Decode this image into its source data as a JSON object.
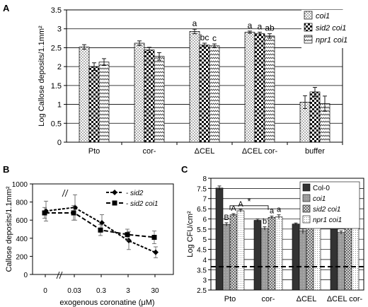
{
  "chart_data": [
    {
      "panel": "A",
      "type": "bar",
      "ylabel": "Log Callose deposits/1.1mm²",
      "ylim": [
        0,
        3.5
      ],
      "yticks": [
        "0",
        "0.5",
        "1",
        "1.5",
        "2",
        "2.5",
        "3",
        "3.5"
      ],
      "categories": [
        "Pto",
        "cor-",
        "ΔCEL",
        "ΔCEL cor-",
        "buffer"
      ],
      "legend_position": "top-right",
      "series": [
        {
          "name": "coi1",
          "values": [
            2.52,
            2.62,
            2.93,
            2.91,
            1.06
          ],
          "errors": [
            0.06,
            0.06,
            0.06,
            0.03,
            0.17
          ]
        },
        {
          "name": "sid2 coi1",
          "values": [
            2.0,
            2.44,
            2.57,
            2.87,
            1.33
          ],
          "errors": [
            0.1,
            0.07,
            0.05,
            0.04,
            0.12
          ]
        },
        {
          "name": "npr1 coi1",
          "values": [
            2.12,
            2.27,
            2.55,
            2.81,
            1.02
          ],
          "errors": [
            0.09,
            0.1,
            0.05,
            0.06,
            0.2
          ]
        }
      ],
      "annotations": [
        {
          "category": "ΔCEL",
          "series": "coi1",
          "text": "a"
        },
        {
          "category": "ΔCEL",
          "series": "sid2 coi1",
          "text": "bc"
        },
        {
          "category": "ΔCEL",
          "series": "npr1 coi1",
          "text": "c"
        },
        {
          "category": "ΔCEL cor-",
          "series": "coi1",
          "text": "a"
        },
        {
          "category": "ΔCEL cor-",
          "series": "sid2 coi1",
          "text": "a"
        },
        {
          "category": "ΔCEL cor-",
          "series": "npr1 coi1",
          "text": "ab"
        }
      ]
    },
    {
      "panel": "B",
      "type": "line",
      "ylabel": "Callose deposits/1.1mm²",
      "xlabel": "exogenous coronatine (μM)",
      "ylim": [
        0,
        1000
      ],
      "yticks": [
        "0",
        "200",
        "400",
        "600",
        "800",
        "1000"
      ],
      "xticks": [
        "0",
        "0.03",
        "0.3",
        "3",
        "30"
      ],
      "legend_position": "top-right",
      "series": [
        {
          "name": "sid2",
          "marker": "diamond",
          "x": [
            0,
            0.03,
            0.3,
            3,
            30
          ],
          "y": [
            700,
            740,
            570,
            375,
            245
          ],
          "errors": [
            110,
            140,
            90,
            100,
            60
          ]
        },
        {
          "name": "sid2 coi1",
          "marker": "square",
          "x": [
            0,
            0.03,
            0.3,
            3,
            30
          ],
          "y": [
            680,
            680,
            490,
            440,
            410
          ],
          "errors": [
            60,
            80,
            60,
            60,
            70
          ]
        }
      ]
    },
    {
      "panel": "C",
      "type": "bar",
      "ylabel": "Log CFU/cm²",
      "ylim": [
        2.5,
        8.0
      ],
      "yticks": [
        "2.5",
        "3",
        "3.5",
        "4",
        "4.5",
        "5",
        "5.5",
        "6",
        "6.5",
        "7",
        "7.5",
        "8"
      ],
      "categories": [
        "Pto",
        "cor-",
        "ΔCEL",
        "ΔCEL cor-"
      ],
      "legend_position": "top-right",
      "baseline": 3.65,
      "series": [
        {
          "name": "Col-0",
          "values": [
            7.52,
            5.93,
            5.75,
            5.58
          ],
          "errors": [
            0.1,
            0.06,
            0.05,
            0.05
          ]
        },
        {
          "name": "coi1",
          "values": [
            5.73,
            5.53,
            5.42,
            5.33
          ],
          "errors": [
            0.08,
            0.08,
            0.15,
            0.08
          ]
        },
        {
          "name": "sid2 coi1",
          "values": [
            6.2,
            6.07,
            5.97,
            5.55
          ],
          "errors": [
            0.06,
            0.07,
            0.1,
            0.06
          ]
        },
        {
          "name": "npr1 coi1",
          "values": [
            6.4,
            6.1,
            5.72,
            5.63
          ],
          "errors": [
            0.07,
            0.1,
            0.08,
            0.08
          ]
        }
      ],
      "annotations": [
        {
          "category": "Pto",
          "series": "coi1",
          "text": "B"
        },
        {
          "category": "Pto",
          "series": "sid2 coi1",
          "text": "A"
        },
        {
          "category": "Pto",
          "series": "npr1 coi1",
          "text": "A"
        },
        {
          "category": "cor-",
          "series": "coi1",
          "text": "b"
        },
        {
          "category": "cor-",
          "series": "sid2 coi1",
          "text": "a"
        },
        {
          "category": "cor-",
          "series": "npr1 coi1",
          "text": "a"
        }
      ],
      "significance_brackets": [
        {
          "from": "Pto",
          "to": "cor-",
          "text": "*"
        },
        {
          "from": "ΔCEL",
          "to": "ΔCEL cor-",
          "text": "*"
        }
      ]
    }
  ],
  "panel_labels": {
    "a": "A",
    "b": "B",
    "c": "C"
  }
}
